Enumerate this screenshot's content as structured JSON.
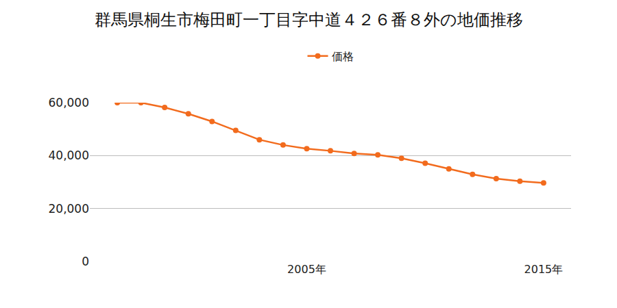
{
  "chart_data": {
    "type": "line",
    "title": "群馬県桐生市梅田町一丁目字中道４２６番８外の地価推移",
    "categories": [
      null,
      null,
      null,
      null,
      null,
      null,
      null,
      null,
      "2005年",
      null,
      null,
      null,
      null,
      null,
      null,
      null,
      null,
      null,
      "2015年"
    ],
    "series": [
      {
        "name": "価格",
        "color": "#f26b1d",
        "marker": "circle",
        "line_style": "solid",
        "values": [
          60000,
          60000,
          58200,
          55800,
          52900,
          49500,
          46000,
          44000,
          42600,
          41800,
          40800,
          40300,
          39000,
          37100,
          35000,
          32900,
          31300,
          30300,
          29700
        ]
      }
    ],
    "ylim": [
      0,
      60000
    ],
    "yticks": [
      0,
      {
        "value": 20000,
        "label": "20,000"
      },
      {
        "value": 40000,
        "label": "40,000"
      },
      {
        "value": 60000,
        "label": "60,000"
      }
    ],
    "grid": true,
    "legend": "top"
  }
}
